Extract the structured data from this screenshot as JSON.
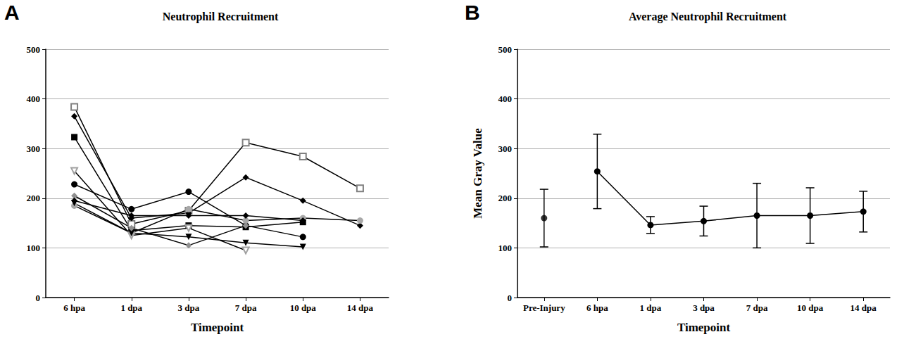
{
  "chart_data": [
    {
      "type": "line",
      "title": "Neutrophil Recruitment",
      "annotations": [
        {
          "text": "A"
        }
      ],
      "x_label": "Timepoint",
      "categories": [
        "6 hpa",
        "1 dpa",
        "3 dpa",
        "7 dpa",
        "10 dpa",
        "14 dpa"
      ],
      "ylim": [
        0,
        500
      ],
      "yticks": [
        0,
        100,
        200,
        300,
        400,
        500
      ],
      "grid": true,
      "series": [
        {
          "color": "#808080",
          "marker": "square-open",
          "values": [
            384,
            148,
            175,
            312,
            284,
            220
          ]
        },
        {
          "color": "#000000",
          "marker": "diamond",
          "values": [
            365,
            160,
            170,
            242,
            195,
            145
          ]
        },
        {
          "color": "#000000",
          "marker": "square",
          "values": [
            323,
            135,
            145,
            142,
            152,
            null
          ]
        },
        {
          "color": "#a0a0a0",
          "marker": "triangle-down-open",
          "values": [
            255,
            125,
            140,
            95,
            null,
            null
          ]
        },
        {
          "color": "#000000",
          "marker": "circle",
          "values": [
            228,
            178,
            213,
            145,
            122,
            null
          ]
        },
        {
          "color": "#a8a8a8",
          "marker": "circle",
          "values": [
            185,
            130,
            178,
            155,
            160,
            155
          ]
        },
        {
          "color": "#000000",
          "marker": "triangle-down",
          "values": [
            190,
            130,
            122,
            110,
            102,
            null
          ]
        },
        {
          "color": "#909090",
          "marker": "diamond",
          "values": [
            205,
            140,
            105,
            145,
            null,
            null
          ]
        },
        {
          "color": "#000000",
          "marker": "diamond",
          "values": [
            195,
            165,
            165,
            165,
            155,
            null
          ]
        }
      ]
    },
    {
      "type": "line",
      "title": "Average Neutrophil Recruitment",
      "annotations": [
        {
          "text": "B"
        }
      ],
      "x_label": "Timepoint",
      "y_label": "Mean Gray Value",
      "categories": [
        "Pre-Injury",
        "6 hpa",
        "1 dpa",
        "3 dpa",
        "7 dpa",
        "10 dpa",
        "14 dpa"
      ],
      "ylim": [
        0,
        500
      ],
      "yticks": [
        0,
        100,
        200,
        300,
        400,
        500
      ],
      "grid": true,
      "series": [
        {
          "type": "scatter",
          "color": "#000000",
          "marker": "circle",
          "values": [
            160,
            null,
            null,
            null,
            null,
            null,
            null
          ],
          "errors": [
            58,
            null,
            null,
            null,
            null,
            null,
            null
          ]
        },
        {
          "type": "line",
          "color": "#000000",
          "marker": "circle",
          "values": [
            null,
            254,
            146,
            154,
            165,
            165,
            173
          ],
          "errors": [
            null,
            75,
            17,
            30,
            65,
            56,
            41
          ]
        }
      ]
    }
  ]
}
